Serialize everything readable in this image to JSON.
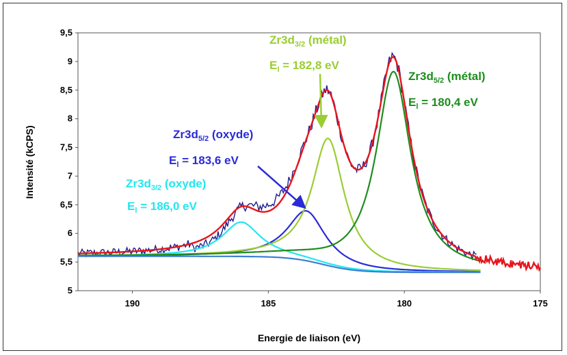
{
  "chart_data": {
    "type": "line",
    "title": "",
    "xlabel": "Energie de liaison (eV)",
    "ylabel": "Intensité (kCPS)",
    "xlim": [
      192,
      175
    ],
    "ylim": [
      5,
      9.5
    ],
    "x_reversed": true,
    "grid": false,
    "x_ticks": [
      190,
      185,
      180,
      175
    ],
    "y_ticks": [
      {
        "v": 5,
        "label": "5"
      },
      {
        "v": 5.5,
        "label": "5,5"
      },
      {
        "v": 6,
        "label": "6"
      },
      {
        "v": 6.5,
        "label": "6,5"
      },
      {
        "v": 7,
        "label": "7"
      },
      {
        "v": 7.5,
        "label": "7,5"
      },
      {
        "v": 8,
        "label": "8"
      },
      {
        "v": 8.5,
        "label": "8,5"
      },
      {
        "v": 9,
        "label": "9"
      },
      {
        "v": 9.5,
        "label": "9,5"
      }
    ],
    "background": {
      "color": "#3a7fd5",
      "start": 5.6,
      "end": 5.32,
      "center": 183,
      "steepness": 1.6,
      "x_from": 192,
      "x_to": 177.2
    },
    "peaks": [
      {
        "name": "Zr3d5/2 (oxyde)",
        "center": 183.6,
        "height": 0.87,
        "width": 0.85,
        "color": "#2a2ad8"
      },
      {
        "name": "Zr3d3/2 (oxyde)",
        "center": 186.0,
        "height": 0.6,
        "width": 0.85,
        "color": "#22e6f0"
      },
      {
        "name": "Zr3d3/2 (métal)",
        "center": 182.8,
        "height": 2.22,
        "width": 0.72,
        "color": "#9acd32"
      },
      {
        "name": "Zr3d5/2 (métal)",
        "center": 180.4,
        "height": 3.5,
        "width": 0.78,
        "color": "#1e8c1e"
      }
    ],
    "envelope": {
      "color": "#e8141c",
      "x_from": 192,
      "x_to": 175
    },
    "experimental": {
      "color": "#1c1c8a",
      "x_from": 192,
      "x_to": 177.3
    },
    "annotations": [
      {
        "peak": "Zr3d3/2 (métal)",
        "name": "Zr3d",
        "sub": "3/2",
        "state": " (métal)",
        "energy": "E",
        "energy_sub": "l",
        "energy_value": " = 182,8 eV",
        "color": "#9acd32"
      },
      {
        "peak": "Zr3d5/2 (métal)",
        "name": "Zr3d",
        "sub": "5/2",
        "state": " (métal)",
        "energy": "E",
        "energy_sub": "l",
        "energy_value": " = 180,4 eV",
        "color": "#1e8c1e"
      },
      {
        "peak": "Zr3d5/2 (oxyde)",
        "name": "Zr3d",
        "sub": "5/2",
        "state": " (oxyde)",
        "energy": "E",
        "energy_sub": "l",
        "energy_value": " = 183,6 eV",
        "color": "#2a2ad8"
      },
      {
        "peak": "Zr3d3/2 (oxyde)",
        "name": "Zr3d",
        "sub": "3/2",
        "state": " (oxyde)",
        "energy": "E",
        "energy_sub": "l",
        "energy_value": " = 186,0 eV",
        "color": "#22e6f0"
      }
    ]
  }
}
